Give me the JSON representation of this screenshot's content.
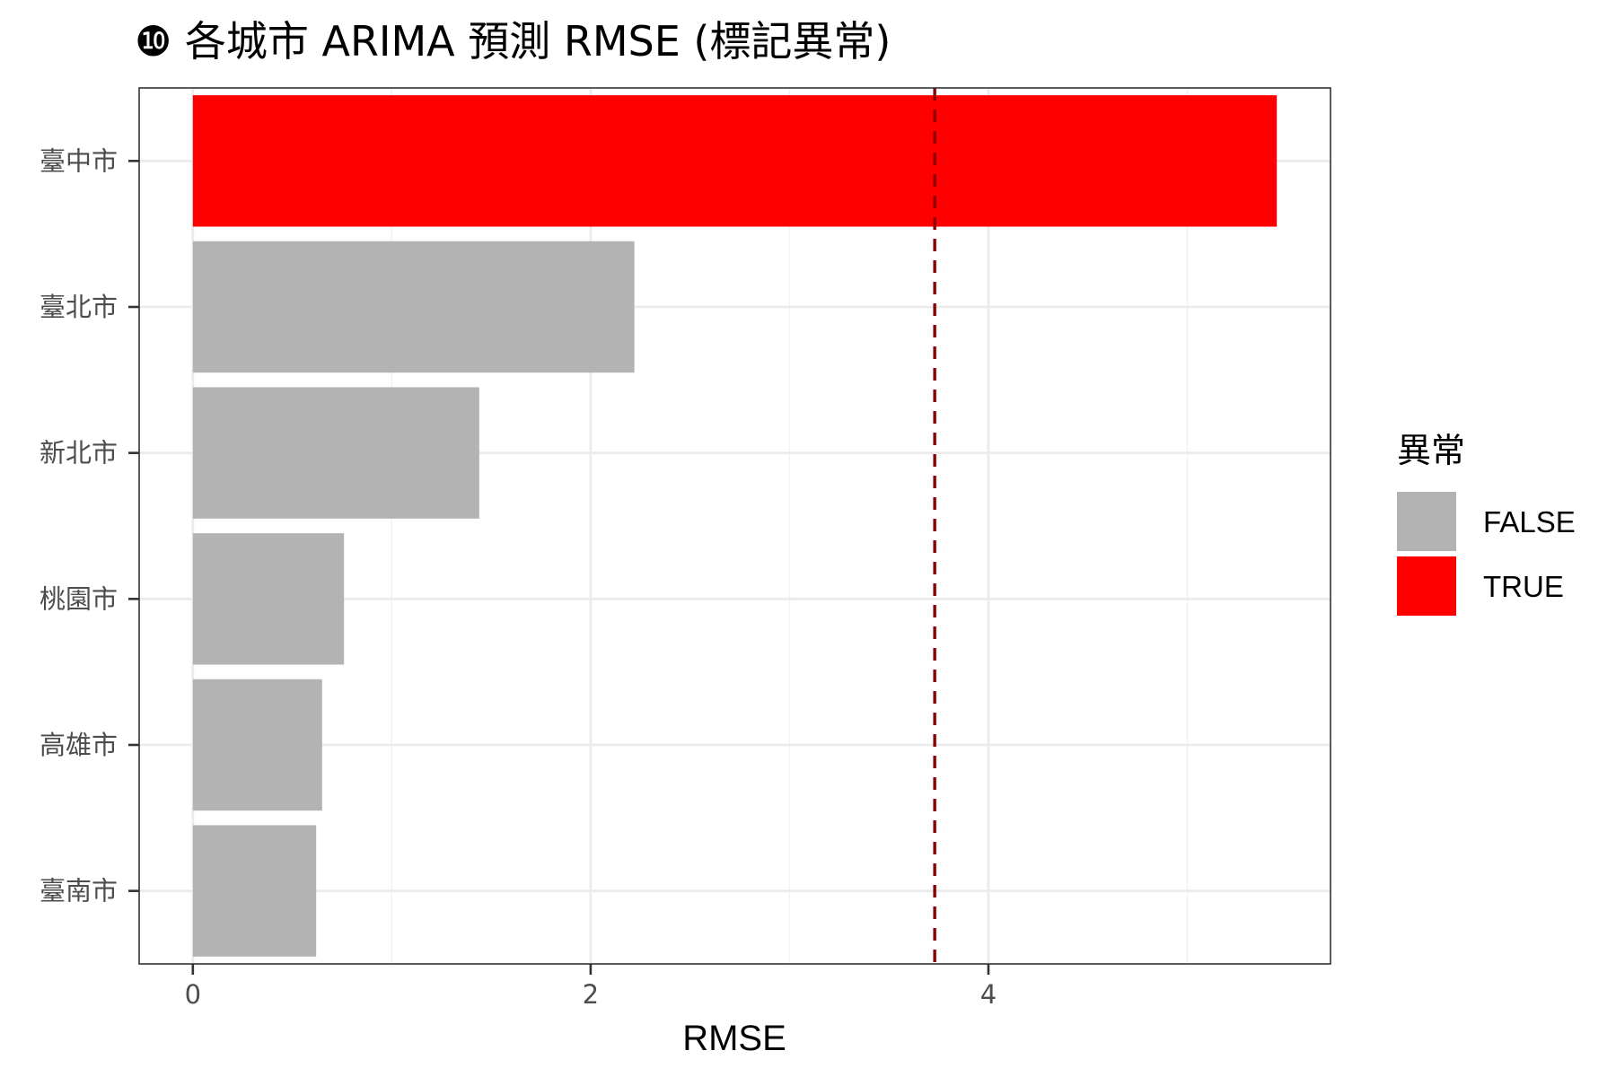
{
  "chart_data": {
    "type": "bar",
    "orientation": "horizontal",
    "title": "❿ 各城市 ARIMA 預測 RMSE (標記異常)",
    "xlabel": "RMSE",
    "ylabel": "",
    "categories": [
      "臺中市",
      "臺北市",
      "新北市",
      "桃園市",
      "高雄市",
      "臺南市"
    ],
    "values": [
      5.45,
      2.22,
      1.44,
      0.76,
      0.65,
      0.62
    ],
    "anomaly": [
      true,
      false,
      false,
      false,
      false,
      false
    ],
    "xlim": [
      -0.27,
      5.72
    ],
    "xticks": [
      0,
      2,
      4
    ],
    "xtick_labels": [
      "0",
      "2",
      "4"
    ],
    "threshold": 3.73,
    "threshold_style": "dashed",
    "legend": {
      "title": "異常",
      "placement": "right",
      "entries": [
        {
          "label": "FALSE",
          "color": "#b3b3b3"
        },
        {
          "label": "TRUE",
          "color": "#ff0000"
        }
      ]
    },
    "colors": {
      "false": "#b3b3b3",
      "true": "#ff0000",
      "threshold": "#8b0000",
      "grid_major": "#ebebeb",
      "grid_minor": "#f2f2f2",
      "panel_border": "#333333"
    },
    "grid": true
  }
}
